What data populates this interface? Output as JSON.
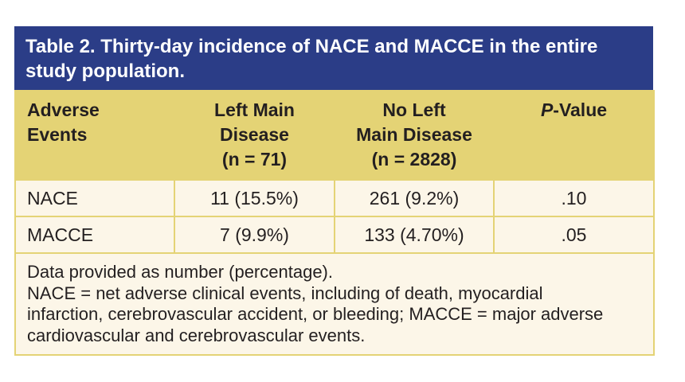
{
  "table": {
    "title": "Table 2. Thirty-day incidence of NACE and MACCE in the entire study population.",
    "headers": [
      {
        "line1": "Adverse",
        "line2": "Events",
        "line3": ""
      },
      {
        "line1": "Left Main",
        "line2": "Disease",
        "line3": "(n = 71)"
      },
      {
        "line1": "No Left",
        "line2": "Main Disease",
        "line3": "(n = 2828)"
      },
      {
        "italic": "P",
        "rest": "-Value"
      }
    ],
    "rows": [
      {
        "event": "NACE",
        "left_main": "11 (15.5%)",
        "no_left_main": "261 (9.2%)",
        "p_value": ".10"
      },
      {
        "event": "MACCE",
        "left_main": "7 (9.9%)",
        "no_left_main": "133 (4.70%)",
        "p_value": ".05"
      }
    ],
    "footnote": {
      "line1": "Data provided as number (percentage).",
      "line2": "NACE = net adverse clinical events, including of death, myocardial infarction, cerebrovascular accident, or bleeding; MACCE = major adverse cardiovascular and cerebrovascular events."
    }
  },
  "colors": {
    "title_bg": "#2b3d87",
    "header_bg": "#e4d375",
    "body_bg": "#fcf6e8"
  }
}
